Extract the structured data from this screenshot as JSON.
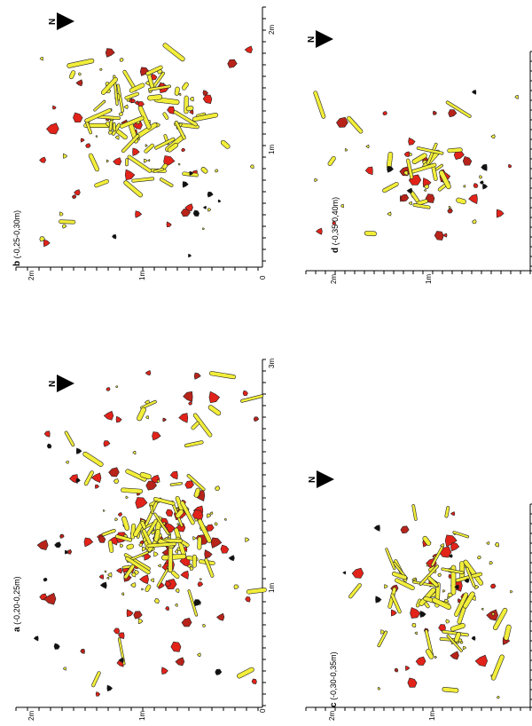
{
  "colors": {
    "bone": "#f2ee3a",
    "stone": "#e2231a",
    "dark_red": "#b8231a",
    "black": "#111111",
    "outline": "#222222"
  },
  "north_label": "N",
  "panels": {
    "a": {
      "letter": "a",
      "caption": " (-0,20-0,25m)",
      "labels": {
        "v0": "0",
        "v1": "1m",
        "v2": "2m",
        "h1": "1m",
        "h3": "3m"
      }
    },
    "b": {
      "letter": "b",
      "caption": " (-0,25-0,30m)",
      "labels": {
        "v0": "0",
        "v1": "1m",
        "v2": "2m",
        "h1": "1m",
        "h2": "2m"
      }
    },
    "c": {
      "letter": "c",
      "caption": " (-0,30-0,35m)",
      "labels": {
        "v1": "1m",
        "v2": "2m"
      }
    },
    "d": {
      "letter": "d",
      "caption": " (-0,35-0,40m)",
      "labels": {
        "v1": "1m",
        "v2": "2m"
      }
    }
  }
}
